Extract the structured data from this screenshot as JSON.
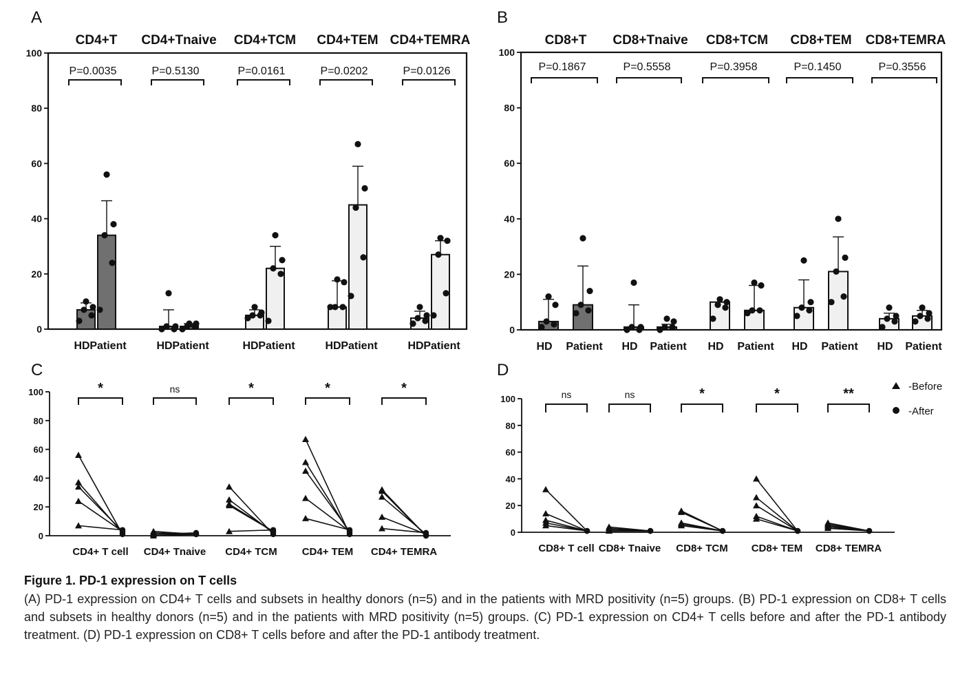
{
  "figure": {
    "caption_title": "Figure 1.   PD-1 expression on T cells",
    "caption_text": "(A) PD-1 expression on CD4+ T cells and subsets in healthy donors (n=5) and in the patients with MRD positivity (n=5) groups. (B) PD-1 expression on CD8+ T cells and subsets in healthy donors (n=5) and in the patients with MRD positivity (n=5) groups. (C) PD-1 expression on CD4+ T cells before and after the PD-1 antibody treatment. (D) PD-1 expression on CD8+ T cells before and after the PD-1 antibody treatment."
  },
  "chart_data": [
    {
      "panel": "A",
      "type": "bar",
      "ylim": [
        0,
        100
      ],
      "yticks": [
        0,
        20,
        40,
        60,
        80,
        100
      ],
      "group_labels": [
        "HD",
        "Patient"
      ],
      "groups": [
        {
          "title": "CD4+T",
          "p": "P=0.0035",
          "hd": {
            "mean": 7,
            "sd": 2.5,
            "points": [
              3,
              5,
              7,
              8,
              10
            ]
          },
          "patient": {
            "mean": 34,
            "sd": 12.5,
            "points": [
              7,
              24,
              34,
              38,
              56
            ]
          }
        },
        {
          "title": "CD4+Tnaive",
          "p": "P=0.5130",
          "hd": {
            "mean": 1,
            "sd": 6,
            "points": [
              0,
              0,
              1,
              1,
              13
            ]
          },
          "patient": {
            "mean": 1,
            "sd": 1,
            "points": [
              0,
              1,
              1,
              2,
              2
            ]
          }
        },
        {
          "title": "CD4+TCM",
          "p": "P=0.0161",
          "hd": {
            "mean": 5,
            "sd": 2,
            "points": [
              4,
              5,
              5,
              6,
              8
            ]
          },
          "patient": {
            "mean": 22,
            "sd": 8,
            "points": [
              3,
              20,
              22,
              25,
              34
            ]
          }
        },
        {
          "title": "CD4+TEM",
          "p": "P=0.0202",
          "hd": {
            "mean": 8,
            "sd": 9.5,
            "points": [
              8,
              8,
              8,
              17,
              18
            ]
          },
          "patient": {
            "mean": 45,
            "sd": 14,
            "points": [
              12,
              26,
              44,
              51,
              67
            ]
          }
        },
        {
          "title": "CD4+TEMRA",
          "p": "P=0.0126",
          "hd": {
            "mean": 4,
            "sd": 2.5,
            "points": [
              2,
              3,
              4,
              5,
              8
            ]
          },
          "patient": {
            "mean": 27,
            "sd": 5,
            "points": [
              5,
              13,
              27,
              32,
              33
            ]
          }
        }
      ]
    },
    {
      "panel": "B",
      "type": "bar",
      "ylim": [
        0,
        100
      ],
      "yticks": [
        0,
        20,
        40,
        60,
        80,
        100
      ],
      "group_labels": [
        "HD",
        "Patient"
      ],
      "groups": [
        {
          "title": "CD8+T",
          "p": "P=0.1867",
          "hd": {
            "mean": 3,
            "sd": 8,
            "points": [
              1,
              2,
              3,
              9,
              12
            ]
          },
          "patient": {
            "mean": 9,
            "sd": 14,
            "points": [
              6,
              7,
              9,
              14,
              33
            ]
          }
        },
        {
          "title": "CD8+Tnaive",
          "p": "P=0.5558",
          "hd": {
            "mean": 1,
            "sd": 8,
            "points": [
              0,
              0,
              1,
              1,
              17
            ]
          },
          "patient": {
            "mean": 1,
            "sd": 1,
            "points": [
              0,
              1,
              1,
              3,
              4
            ]
          }
        },
        {
          "title": "CD8+TCM",
          "p": "P=0.3958",
          "hd": {
            "mean": 10,
            "sd": 0,
            "points": [
              4,
              8,
              9,
              10,
              11
            ]
          },
          "patient": {
            "mean": 7,
            "sd": 9,
            "points": [
              6,
              7,
              7,
              16,
              17
            ]
          }
        },
        {
          "title": "CD8+TEM",
          "p": "P=0.1450",
          "hd": {
            "mean": 8,
            "sd": 10,
            "points": [
              5,
              7,
              8,
              10,
              25
            ]
          },
          "patient": {
            "mean": 21,
            "sd": 12.5,
            "points": [
              10,
              12,
              21,
              26,
              40
            ]
          }
        },
        {
          "title": "CD8+TEMRA",
          "p": "P=0.3556",
          "hd": {
            "mean": 4,
            "sd": 2,
            "points": [
              1,
              3,
              4,
              5,
              8
            ]
          },
          "patient": {
            "mean": 5,
            "sd": 2,
            "points": [
              3,
              4,
              5,
              6,
              8
            ]
          }
        }
      ]
    },
    {
      "panel": "C",
      "type": "line",
      "ylim": [
        0,
        100
      ],
      "yticks": [
        0,
        20,
        40,
        60,
        80,
        100
      ],
      "legend": {
        "before": "-Before",
        "after": "-After"
      },
      "groups": [
        {
          "label": "CD4+ T cell",
          "sig": "*",
          "before": [
            56,
            37,
            34,
            24,
            7
          ],
          "after": [
            1,
            2,
            3,
            3,
            4
          ]
        },
        {
          "label": "CD4+ Tnaive",
          "sig": "ns",
          "before": [
            3,
            2,
            1,
            1,
            0
          ],
          "after": [
            1,
            1,
            1,
            2,
            1
          ]
        },
        {
          "label": "CD4+ TCM",
          "sig": "*",
          "before": [
            34,
            25,
            22,
            21,
            3
          ],
          "after": [
            1,
            2,
            3,
            3,
            4
          ]
        },
        {
          "label": "CD4+ TEM",
          "sig": "*",
          "before": [
            67,
            51,
            45,
            26,
            12
          ],
          "after": [
            1,
            2,
            3,
            3,
            4
          ]
        },
        {
          "label": "CD4+ TEMRA",
          "sig": "*",
          "before": [
            32,
            31,
            27,
            13,
            5
          ],
          "after": [
            0,
            0,
            1,
            1,
            2
          ]
        }
      ]
    },
    {
      "panel": "D",
      "type": "line",
      "ylim": [
        0,
        100
      ],
      "yticks": [
        0,
        20,
        40,
        60,
        80,
        100
      ],
      "legend": {
        "before": "-Before",
        "after": "-After"
      },
      "groups": [
        {
          "label": "CD8+ T cell",
          "sig": "ns",
          "before": [
            32,
            14,
            9,
            7,
            5
          ],
          "after": [
            1,
            1,
            1,
            1,
            1
          ]
        },
        {
          "label": "CD8+ Tnaive",
          "sig": "ns",
          "before": [
            4,
            3,
            2,
            1,
            1
          ],
          "after": [
            1,
            1,
            1,
            1,
            1
          ]
        },
        {
          "label": "CD8+ TCM",
          "sig": "*",
          "before": [
            16,
            15,
            7,
            6,
            5
          ],
          "after": [
            1,
            1,
            1,
            1,
            1
          ]
        },
        {
          "label": "CD8+ TEM",
          "sig": "*",
          "before": [
            40,
            26,
            20,
            12,
            10
          ],
          "after": [
            1,
            1,
            1,
            1,
            1
          ]
        },
        {
          "label": "CD8+ TEMRA",
          "sig": "**",
          "before": [
            7,
            6,
            5,
            4,
            3
          ],
          "after": [
            1,
            1,
            1,
            1,
            1
          ]
        }
      ]
    }
  ],
  "colors": {
    "patient_fill_a": "#707070",
    "light_fill": "#f0f0f0",
    "ink": "#111111"
  }
}
